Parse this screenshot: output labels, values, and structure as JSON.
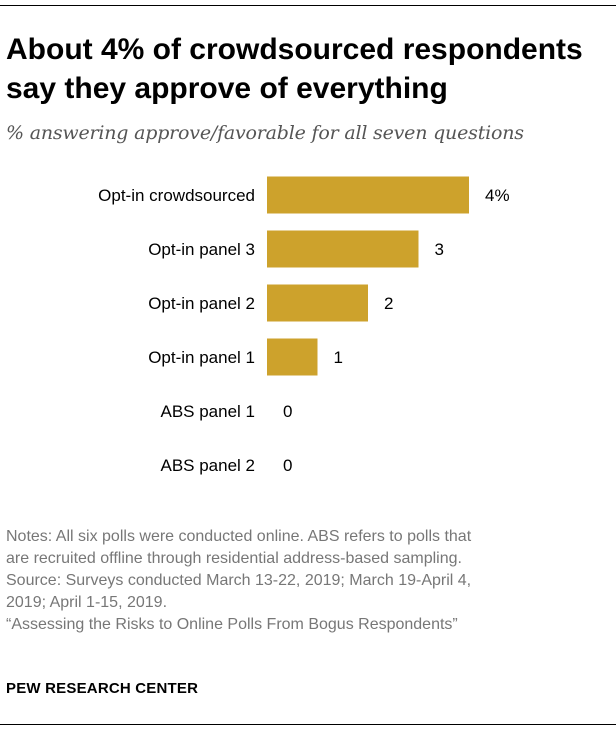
{
  "header": {
    "title_line1": "About 4% of crowdsourced respondents",
    "title_line2": "say they approve of everything",
    "subtitle": "% answering approve/favorable for all seven questions"
  },
  "chart_data": {
    "type": "bar",
    "orientation": "horizontal",
    "categories": [
      "Opt-in crowdsourced",
      "Opt-in panel 3",
      "Opt-in panel 2",
      "Opt-in panel 1",
      "ABS panel 1",
      "ABS panel 2"
    ],
    "values": [
      4,
      3,
      2,
      1,
      0,
      0
    ],
    "value_labels": [
      "4%",
      "3",
      "2",
      "1",
      "0",
      "0"
    ],
    "xlim": [
      0,
      4
    ],
    "bar_color": "#CDA22C",
    "grid": false,
    "legend": "none"
  },
  "notes": {
    "line1": "Notes: All six polls were conducted online. ABS refers to polls that",
    "line2": "are recruited offline through residential address-based sampling.",
    "line3": "Source: Surveys conducted March 13-22, 2019; March 19-April 4,",
    "line4": "2019; April 1-15, 2019.",
    "line5": "“Assessing the Risks to Online Polls From Bogus Respondents”"
  },
  "credit": "PEW RESEARCH CENTER"
}
